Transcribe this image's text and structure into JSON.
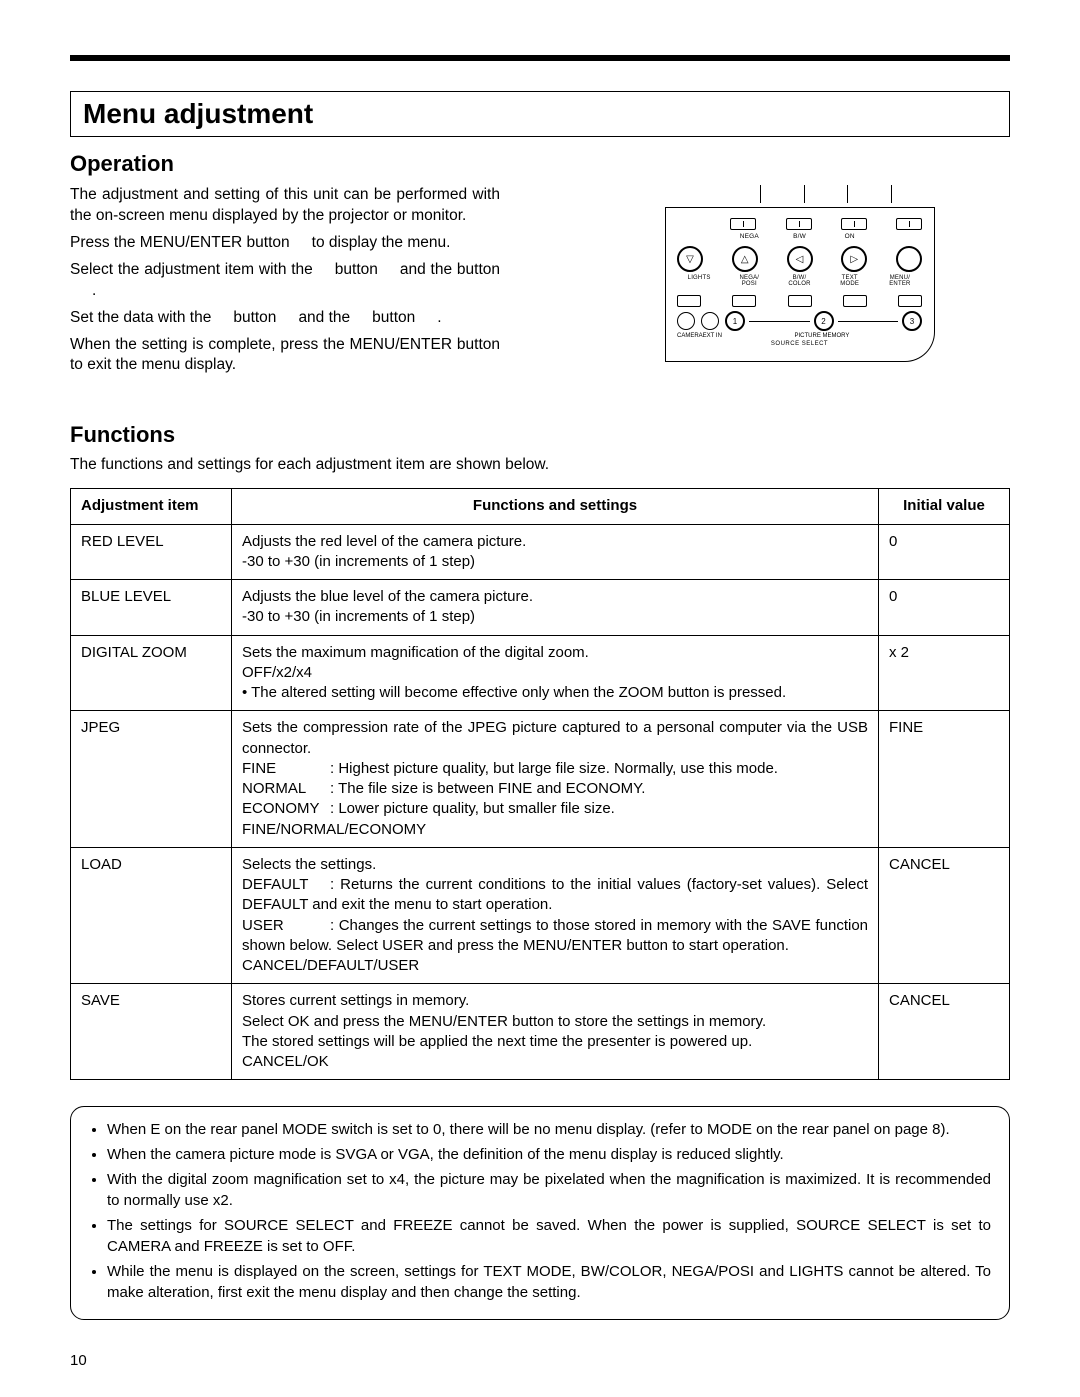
{
  "title": "Menu adjustment",
  "operation": {
    "heading": "Operation",
    "p1": "The adjustment and setting of this unit can be performed with the on-screen menu displayed by the projector or monitor.",
    "p2a": "Press the MENU/ENTER button",
    "p2b": "to display the menu.",
    "p3a": "Select the adjustment item with the",
    "p3b": "button",
    "p3c": "and the",
    "p3d": "button",
    "p3e": ".",
    "p4a": "Set the data with the",
    "p4b": "button",
    "p4c": "and the",
    "p4d": "button",
    "p4e": ".",
    "p5": "When the setting is complete, press the MENU/ENTER button to exit the menu display."
  },
  "panel": {
    "top_labels": [
      "",
      "NEGA",
      "B/W",
      "ON",
      ""
    ],
    "mid_labels": [
      "LIGHTS",
      "NEGA/\nPOSI",
      "B/W/\nCOLOR",
      "TEXT\nMODE",
      "MENU/\nENTER"
    ],
    "arrow_down": "▽",
    "arrow_up": "△",
    "arrow_left": "◁",
    "arrow_right": "▷",
    "src_labels": [
      "CAMERA",
      "EXT IN",
      "PICTURE MEMORY"
    ],
    "src_nums": [
      "1",
      "2",
      "3"
    ],
    "src_title": "SOURCE SELECT"
  },
  "functions": {
    "heading": "Functions",
    "intro": "The functions and settings for each adjustment item are shown below.",
    "headers": [
      "Adjustment item",
      "Functions and settings",
      "Initial value"
    ],
    "rows": [
      {
        "item": "RED LEVEL",
        "desc": "Adjusts the red level of the camera picture.\n-30 to +30 (in increments of 1 step)",
        "val": "0"
      },
      {
        "item": "BLUE LEVEL",
        "desc": "Adjusts the blue level of the camera picture.\n-30 to +30 (in increments of 1 step)",
        "val": "0"
      },
      {
        "item": "DIGITAL ZOOM",
        "desc": "Sets the maximum magnification of the digital zoom.\nOFF/x2/x4\n• The altered setting will become effective only when the ZOOM button is pressed.",
        "val": "x 2"
      },
      {
        "item": "JPEG",
        "desc_intro": "Sets the compression rate of the JPEG picture captured to a personal computer via the USB connector.",
        "lines": [
          {
            "k": "FINE",
            "v": ": Highest picture quality, but large file size. Normally, use this mode."
          },
          {
            "k": "NORMAL",
            "v": ": The file size is between FINE and ECONOMY."
          },
          {
            "k": "ECONOMY",
            "v": ": Lower picture quality, but smaller file size."
          }
        ],
        "desc_tail": "FINE/NORMAL/ECONOMY",
        "val": "FINE"
      },
      {
        "item": "LOAD",
        "desc_intro": "Selects the settings.",
        "lines": [
          {
            "k": "DEFAULT",
            "v": ": Returns the current conditions to the initial values (factory-set values). Select DEFAULT and exit the menu to start operation."
          },
          {
            "k": "USER",
            "v": ": Changes the current settings to those stored in memory with the SAVE function shown below. Select USER and press the MENU/ENTER button to start operation."
          }
        ],
        "desc_tail": "CANCEL/DEFAULT/USER",
        "val": "CANCEL"
      },
      {
        "item": "SAVE",
        "desc": "Stores current settings in memory.\nSelect OK and press the MENU/ENTER button to store the settings in memory.\nThe stored settings will be applied the next time the presenter is powered up.\nCANCEL/OK",
        "val": "CANCEL"
      }
    ]
  },
  "notes": [
    "When E on the rear panel MODE switch is set to 0, there will be no menu display. (refer to MODE on the rear panel on page 8).",
    "When the camera picture mode is SVGA or VGA, the definition of the menu display is reduced slightly.",
    "With the digital zoom magnification set to x4, the picture may be pixelated when the magnification is maximized. It is recommended to normally use x2.",
    "The settings for SOURCE SELECT and FREEZE cannot be saved. When the power is supplied, SOURCE SELECT is set to CAMERA and FREEZE is set to OFF.",
    "While the menu is displayed on the screen, settings for TEXT MODE, BW/COLOR, NEGA/POSI and LIGHTS cannot be altered. To make alteration, first exit the menu display and then change the setting."
  ],
  "page_number": "10"
}
